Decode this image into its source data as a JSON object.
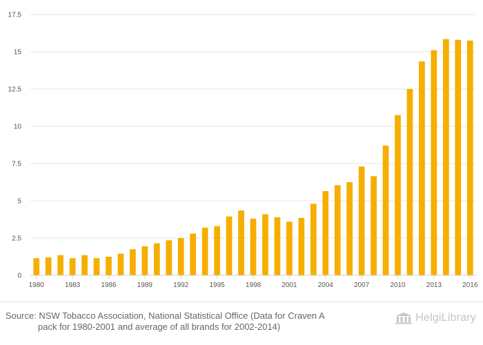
{
  "chart_data": {
    "type": "bar",
    "title": "",
    "xlabel": "",
    "ylabel": "",
    "ylim": [
      0,
      17.5
    ],
    "yticks": [
      "0",
      "2.5",
      "5",
      "7.5",
      "10",
      "12.5",
      "15",
      "17.5"
    ],
    "xtick_labels": [
      "1980",
      "1983",
      "1986",
      "1989",
      "1992",
      "1995",
      "1998",
      "2001",
      "2004",
      "2007",
      "2010",
      "2013",
      "2016"
    ],
    "grid": true,
    "legend": "none",
    "bar_color": "#f6ae00",
    "categories": [
      "1980",
      "1981",
      "1982",
      "1983",
      "1984",
      "1985",
      "1986",
      "1987",
      "1988",
      "1989",
      "1990",
      "1991",
      "1992",
      "1993",
      "1994",
      "1995",
      "1996",
      "1997",
      "1998",
      "1999",
      "2000",
      "2001",
      "2002",
      "2003",
      "2004",
      "2005",
      "2006",
      "2007",
      "2008",
      "2009",
      "2010",
      "2011",
      "2012",
      "2013",
      "2014",
      "2015",
      "2016"
    ],
    "values": [
      1.15,
      1.2,
      1.35,
      1.15,
      1.35,
      1.15,
      1.25,
      1.45,
      1.75,
      1.95,
      2.15,
      2.35,
      2.5,
      2.8,
      3.2,
      3.3,
      3.95,
      4.35,
      3.8,
      4.1,
      3.9,
      3.6,
      3.85,
      4.8,
      5.65,
      6.05,
      6.25,
      7.3,
      6.65,
      8.7,
      10.75,
      12.5,
      14.35,
      15.1,
      15.85,
      15.8,
      15.75
    ]
  },
  "footer": {
    "source_line1": "Source: NSW Tobacco Association, National Statistical Office (Data for Craven A",
    "source_line2": "pack for 1980-2001 and average of all brands for 2002-2014)",
    "brand_text": "HelgiLibrary"
  }
}
